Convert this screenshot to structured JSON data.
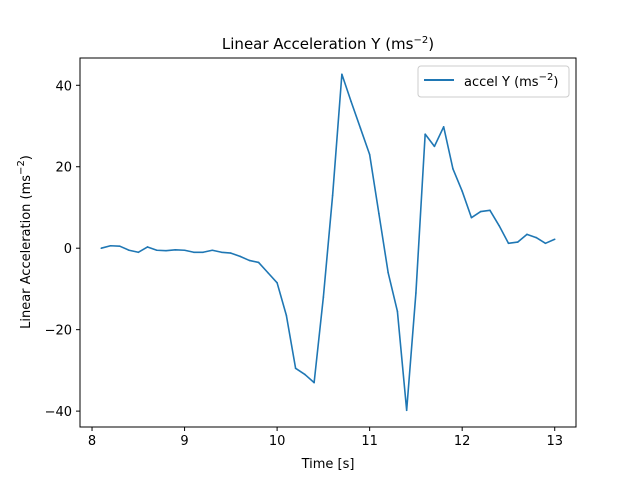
{
  "chart_data": {
    "type": "line",
    "title_text": "Linear Acceleration Y (ms",
    "title_sup": "−2",
    "title_end": ")",
    "xlabel": "Time [s]",
    "ylabel_text": "Linear Acceleration (ms",
    "ylabel_sup": "−2",
    "ylabel_end": ")",
    "xlim": [
      7.87,
      13.23
    ],
    "ylim": [
      -43.9,
      46.7
    ],
    "xticks": [
      8,
      9,
      10,
      11,
      12,
      13
    ],
    "xtick_labels": [
      "8",
      "9",
      "10",
      "11",
      "12",
      "13"
    ],
    "yticks": [
      -40,
      -20,
      0,
      20,
      40
    ],
    "ytick_labels": [
      "−40",
      "−20",
      "0",
      "20",
      "40"
    ],
    "grid": false,
    "legend_position": "top-right",
    "series": [
      {
        "name_text": "accel Y (ms",
        "name_sup": "−2",
        "name_end": ")",
        "color": "#1f77b4",
        "x": [
          8.1,
          8.2,
          8.3,
          8.4,
          8.5,
          8.6,
          8.7,
          8.8,
          8.9,
          9.0,
          9.1,
          9.2,
          9.3,
          9.4,
          9.5,
          9.6,
          9.7,
          9.8,
          9.9,
          10.0,
          10.1,
          10.2,
          10.3,
          10.4,
          10.5,
          10.6,
          10.7,
          10.8,
          10.9,
          11.0,
          11.1,
          11.2,
          11.3,
          11.4,
          11.5,
          11.6,
          11.7,
          11.8,
          11.9,
          12.0,
          12.1,
          12.2,
          12.3,
          12.4,
          12.5,
          12.6,
          12.7,
          12.8,
          12.9,
          13.0
        ],
        "y": [
          0.0,
          0.6,
          0.5,
          -0.5,
          -1.0,
          0.3,
          -0.5,
          -0.6,
          -0.4,
          -0.5,
          -1.0,
          -1.0,
          -0.5,
          -1.0,
          -1.2,
          -2.0,
          -3.0,
          -3.5,
          -6.0,
          -8.5,
          -16.5,
          -29.5,
          -31.0,
          -33.0,
          -12.0,
          13.0,
          42.7,
          36.0,
          29.5,
          23.0,
          8.5,
          -6.0,
          -15.5,
          -39.8,
          -11.0,
          28.0,
          25.0,
          29.8,
          19.5,
          14.0,
          7.5,
          9.0,
          9.3,
          5.5,
          1.2,
          1.5,
          3.4,
          2.6,
          1.2,
          2.2
        ]
      }
    ]
  }
}
